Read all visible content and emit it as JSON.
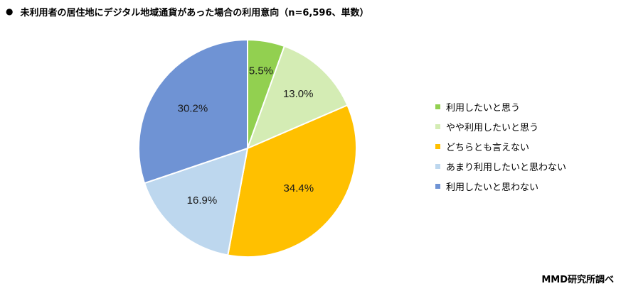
{
  "title": "未利用者の居住地にデジタル地域通貨があった場合の利用意向（n=6,596、単数）",
  "title_bullet": "●",
  "credit": "MMD研究所調べ",
  "chart_data": {
    "type": "pie",
    "title": "未利用者の居住地にデジタル地域通貨があった場合の利用意向（n=6,596、単数）",
    "start_angle": "12 o'clock",
    "direction": "clockwise",
    "legend_position": "right",
    "slices": [
      {
        "label": "利用したいと思う",
        "value": 5.5,
        "display": "5.5%",
        "color": "#92d050"
      },
      {
        "label": "やや利用したいと思う",
        "value": 13.0,
        "display": "13.0%",
        "color": "#d4ecb4"
      },
      {
        "label": "どちらとも言えない",
        "value": 34.4,
        "display": "34.4%",
        "color": "#ffc000"
      },
      {
        "label": "あまり利用したいと思わない",
        "value": 16.9,
        "display": "16.9%",
        "color": "#bdd7ee"
      },
      {
        "label": "利用したいと思わない",
        "value": 30.2,
        "display": "30.2%",
        "color": "#6f93d4"
      }
    ]
  }
}
